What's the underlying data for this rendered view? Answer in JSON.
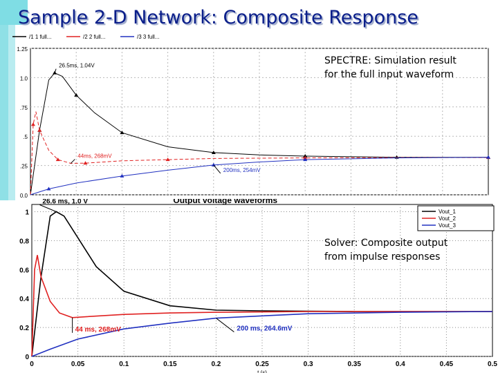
{
  "slide": {
    "title": "Sample 2-D Network: Composite Response",
    "note_top": [
      "SPECTRE: Simulation result",
      "for the full input waveform"
    ],
    "note_bottom": [
      "Solver: Composite output",
      "from impulse responses"
    ]
  },
  "chart_data": [
    {
      "type": "line",
      "title": "",
      "xlim": [
        0,
        0.5
      ],
      "ylim": [
        0,
        1.25
      ],
      "y_ticks": [
        0.0,
        0.25,
        0.5,
        0.75,
        1.0,
        1.25
      ],
      "y_tick_labels": [
        "0.0",
        ".25",
        ".5",
        ".75",
        "1.0",
        "1.25"
      ],
      "grid": true,
      "legend_position": "top-left",
      "legend": [
        "/1  1  full...",
        "/2  2  full...",
        "/3  3  full..."
      ],
      "series": [
        {
          "name": "/1  1  full...",
          "color": "#000000",
          "x": [
            0,
            0.01,
            0.02,
            0.0265,
            0.035,
            0.05,
            0.07,
            0.1,
            0.15,
            0.2,
            0.25,
            0.3,
            0.35,
            0.4,
            0.45,
            0.5
          ],
          "y": [
            0,
            0.55,
            0.98,
            1.04,
            1.01,
            0.85,
            0.7,
            0.53,
            0.41,
            0.36,
            0.34,
            0.33,
            0.325,
            0.32,
            0.32,
            0.32
          ]
        },
        {
          "name": "/2  2  full...",
          "color": "#e02020",
          "x": [
            0,
            0.003,
            0.006,
            0.01,
            0.02,
            0.03,
            0.044,
            0.06,
            0.1,
            0.15,
            0.2,
            0.3,
            0.4,
            0.5
          ],
          "y": [
            0,
            0.6,
            0.71,
            0.55,
            0.38,
            0.3,
            0.268,
            0.27,
            0.29,
            0.3,
            0.31,
            0.315,
            0.318,
            0.318
          ]
        },
        {
          "name": "/3  3  full...",
          "color": "#2030c0",
          "x": [
            0,
            0.02,
            0.05,
            0.1,
            0.15,
            0.2,
            0.25,
            0.3,
            0.4,
            0.5
          ],
          "y": [
            0,
            0.05,
            0.1,
            0.16,
            0.21,
            0.254,
            0.28,
            0.3,
            0.315,
            0.32
          ]
        }
      ],
      "annotations": [
        {
          "text": "26.5ms, 1.04V",
          "x": 0.0265,
          "y": 1.04
        },
        {
          "text": "44ms, 268mV",
          "x": 0.044,
          "y": 0.268
        },
        {
          "text": "200ms, 254mV",
          "x": 0.2,
          "y": 0.254
        }
      ]
    },
    {
      "type": "line",
      "title": "Output voltage waveforms",
      "xlabel": "t (s)",
      "xlim": [
        0,
        0.5
      ],
      "ylim": [
        0,
        1.05
      ],
      "x_ticks": [
        0,
        0.05,
        0.1,
        0.15,
        0.2,
        0.25,
        0.3,
        0.35,
        0.4,
        0.45,
        0.5
      ],
      "x_tick_labels": [
        "0",
        "0.05",
        "0.1",
        "0.15",
        "0.2",
        "0.25",
        "0.3",
        "0.35",
        "0.4",
        "0.45",
        "0.5"
      ],
      "y_ticks": [
        0,
        0.2,
        0.4,
        0.6,
        0.8,
        1
      ],
      "y_tick_labels": [
        "0",
        "0.2",
        "0.4",
        "0.6",
        "0.8",
        "1"
      ],
      "grid": true,
      "legend_position": "top-right",
      "legend": [
        "Vout_1",
        "Vout_2",
        "Vout_3"
      ],
      "series": [
        {
          "name": "Vout_1",
          "color": "#000000",
          "x": [
            0,
            0.01,
            0.02,
            0.0266,
            0.035,
            0.05,
            0.07,
            0.1,
            0.15,
            0.2,
            0.25,
            0.3,
            0.35,
            0.4,
            0.45,
            0.5
          ],
          "y": [
            0,
            0.55,
            0.97,
            1.0,
            0.97,
            0.82,
            0.62,
            0.45,
            0.35,
            0.32,
            0.315,
            0.312,
            0.31,
            0.31,
            0.31,
            0.31
          ]
        },
        {
          "name": "Vout_2",
          "color": "#e02020",
          "x": [
            0,
            0.003,
            0.006,
            0.01,
            0.02,
            0.03,
            0.044,
            0.06,
            0.1,
            0.15,
            0.2,
            0.3,
            0.4,
            0.5
          ],
          "y": [
            0,
            0.6,
            0.7,
            0.55,
            0.38,
            0.3,
            0.268,
            0.275,
            0.29,
            0.3,
            0.305,
            0.31,
            0.31,
            0.31
          ]
        },
        {
          "name": "Vout_3",
          "color": "#2030c0",
          "x": [
            0,
            0.02,
            0.05,
            0.1,
            0.15,
            0.2,
            0.25,
            0.3,
            0.4,
            0.5
          ],
          "y": [
            0,
            0.05,
            0.12,
            0.19,
            0.23,
            0.2646,
            0.28,
            0.295,
            0.305,
            0.31
          ]
        }
      ],
      "annotations": [
        {
          "text": "26.6 ms, 1.0 V",
          "x": 0.0266,
          "y": 1.0
        },
        {
          "text": "44 ms, 268mV",
          "x": 0.044,
          "y": 0.268
        },
        {
          "text": "200 ms, 264.6mV",
          "x": 0.2,
          "y": 0.2646
        }
      ]
    }
  ],
  "colors": {
    "title": "#0a1e8a",
    "deco_teal": "#5fd3dc",
    "grid": "#b8b8b8"
  }
}
